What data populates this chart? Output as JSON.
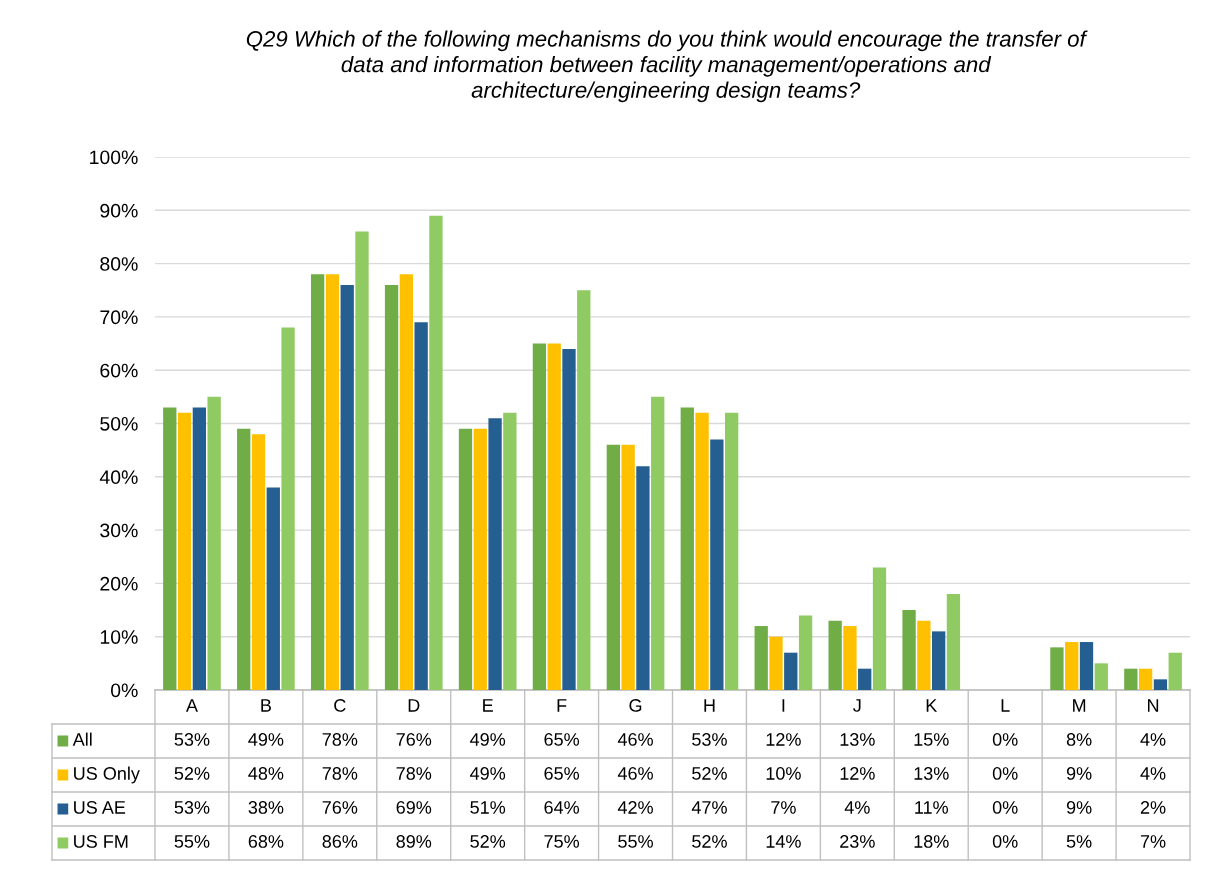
{
  "chart_data": {
    "type": "bar",
    "title": "Q29 Which of the following mechanisms do you think would encourage the transfer of\ndata and information between facility management/operations and\narchitecture/engineering design teams?",
    "categories": [
      "A",
      "B",
      "C",
      "D",
      "E",
      "F",
      "G",
      "H",
      "I",
      "J",
      "K",
      "L",
      "M",
      "N"
    ],
    "series": [
      {
        "name": "All",
        "color": "#70ad47",
        "values": [
          53,
          49,
          78,
          76,
          49,
          65,
          46,
          53,
          12,
          13,
          15,
          0,
          8,
          4
        ],
        "value_labels": [
          "53%",
          "49%",
          "78%",
          "76%",
          "49%",
          "65%",
          "46%",
          "53%",
          "12%",
          "13%",
          "15%",
          "0%",
          "8%",
          "4%"
        ]
      },
      {
        "name": "US Only",
        "color": "#ffc000",
        "values": [
          52,
          48,
          78,
          78,
          49,
          65,
          46,
          52,
          10,
          12,
          13,
          0,
          9,
          4
        ],
        "value_labels": [
          "52%",
          "48%",
          "78%",
          "78%",
          "49%",
          "65%",
          "46%",
          "52%",
          "10%",
          "12%",
          "13%",
          "0%",
          "9%",
          "4%"
        ]
      },
      {
        "name": "US AE",
        "color": "#255e91",
        "values": [
          53,
          38,
          76,
          69,
          51,
          64,
          42,
          47,
          7,
          4,
          11,
          0,
          9,
          2
        ],
        "value_labels": [
          "53%",
          "38%",
          "76%",
          "69%",
          "51%",
          "64%",
          "42%",
          "47%",
          "7%",
          "4%",
          "11%",
          "0%",
          "9%",
          "2%"
        ]
      },
      {
        "name": "US FM",
        "color": "#8fca62",
        "values": [
          55,
          68,
          86,
          89,
          52,
          75,
          55,
          52,
          14,
          23,
          18,
          0,
          5,
          7
        ],
        "value_labels": [
          "55%",
          "68%",
          "86%",
          "89%",
          "52%",
          "75%",
          "55%",
          "52%",
          "14%",
          "23%",
          "18%",
          "0%",
          "5%",
          "7%"
        ]
      }
    ],
    "ylim": [
      0,
      100
    ],
    "yticks": [
      {
        "value": 0,
        "label": "0%"
      },
      {
        "value": 10,
        "label": "10%"
      },
      {
        "value": 20,
        "label": "20%"
      },
      {
        "value": 30,
        "label": "30%"
      },
      {
        "value": 40,
        "label": "40%"
      },
      {
        "value": 50,
        "label": "50%"
      },
      {
        "value": 60,
        "label": "60%"
      },
      {
        "value": 70,
        "label": "70%"
      },
      {
        "value": 80,
        "label": "80%"
      },
      {
        "value": 90,
        "label": "90%"
      },
      {
        "value": 100,
        "label": "100%"
      }
    ],
    "grid": "y",
    "legend": "bottom"
  }
}
